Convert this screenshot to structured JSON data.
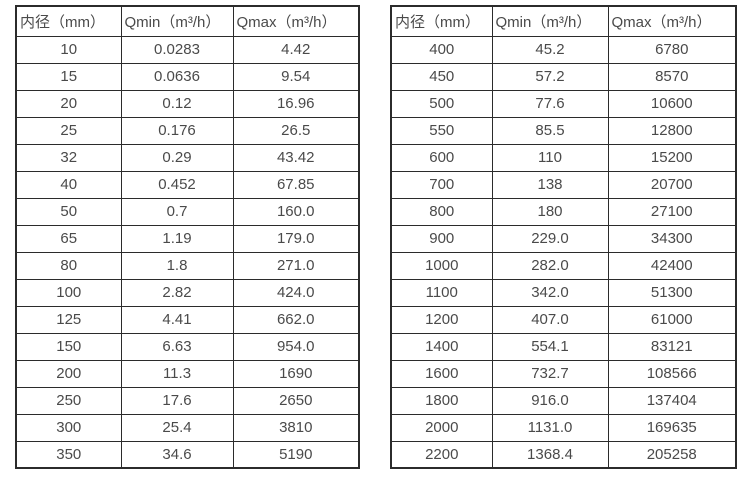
{
  "page": {
    "background_color": "#ffffff",
    "text_color": "#4a4a4a",
    "border_color": "#2b2b2b"
  },
  "tables": [
    {
      "name": "flow-spec-table-small-diameters",
      "headers": [
        "内径（mm）",
        "Qmin（m³/h）",
        "Qmax（m³/h）"
      ],
      "rows": [
        [
          "10",
          "0.0283",
          "4.42"
        ],
        [
          "15",
          "0.0636",
          "9.54"
        ],
        [
          "20",
          "0.12",
          "16.96"
        ],
        [
          "25",
          "0.176",
          "26.5"
        ],
        [
          "32",
          "0.29",
          "43.42"
        ],
        [
          "40",
          "0.452",
          "67.85"
        ],
        [
          "50",
          "0.7",
          "160.0"
        ],
        [
          "65",
          "1.19",
          "179.0"
        ],
        [
          "80",
          "1.8",
          "271.0"
        ],
        [
          "100",
          "2.82",
          "424.0"
        ],
        [
          "125",
          "4.41",
          "662.0"
        ],
        [
          "150",
          "6.63",
          "954.0"
        ],
        [
          "200",
          "11.3",
          "1690"
        ],
        [
          "250",
          "17.6",
          "2650"
        ],
        [
          "300",
          "25.4",
          "3810"
        ],
        [
          "350",
          "34.6",
          "5190"
        ]
      ]
    },
    {
      "name": "flow-spec-table-large-diameters",
      "headers": [
        "内径（mm）",
        "Qmin（m³/h）",
        "Qmax（m³/h）"
      ],
      "rows": [
        [
          "400",
          "45.2",
          "6780"
        ],
        [
          "450",
          "57.2",
          "8570"
        ],
        [
          "500",
          "77.6",
          "10600"
        ],
        [
          "550",
          "85.5",
          "12800"
        ],
        [
          "600",
          "110",
          "15200"
        ],
        [
          "700",
          "138",
          "20700"
        ],
        [
          "800",
          "180",
          "27100"
        ],
        [
          "900",
          "229.0",
          "34300"
        ],
        [
          "1000",
          "282.0",
          "42400"
        ],
        [
          "1100",
          "342.0",
          "51300"
        ],
        [
          "1200",
          "407.0",
          "61000"
        ],
        [
          "1400",
          "554.1",
          "83121"
        ],
        [
          "1600",
          "732.7",
          "108566"
        ],
        [
          "1800",
          "916.0",
          "137404"
        ],
        [
          "2000",
          "1131.0",
          "169635"
        ],
        [
          "2200",
          "1368.4",
          "205258"
        ]
      ]
    }
  ]
}
